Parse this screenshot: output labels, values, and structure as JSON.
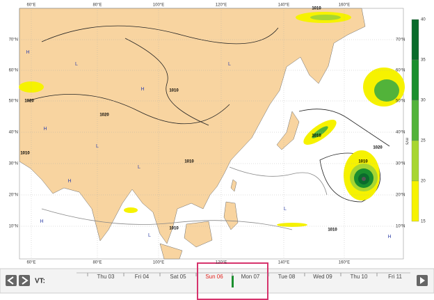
{
  "map": {
    "lon_labels": [
      "60°E",
      "80°E",
      "100°E",
      "120°E",
      "140°E",
      "160°E"
    ],
    "lat_labels": [
      "70°N",
      "60°N",
      "50°N",
      "40°N",
      "30°N",
      "20°N",
      "10°N"
    ],
    "isobar_labels": [
      "1010",
      "1020",
      "1020",
      "1010",
      "1010",
      "1010",
      "1010",
      "1020",
      "1010",
      "1010",
      "1010"
    ],
    "centers": [
      "H",
      "L",
      "H",
      "L",
      "H",
      "L",
      "L",
      "H",
      "L",
      "H",
      "L",
      "H"
    ]
  },
  "colorbar": {
    "ticks": [
      40,
      35,
      30,
      25,
      20,
      15
    ],
    "colors": [
      "#0a6b2c",
      "#1a8f2e",
      "#52b33a",
      "#a8d631",
      "#f6f200"
    ],
    "unit": "m/s"
  },
  "timeline": {
    "label": "VT:",
    "days": [
      "Thu 03",
      "Fri 04",
      "Sat 05",
      "Sun 06",
      "Mon 07",
      "Tue 08",
      "Wed 09",
      "Thu 10",
      "Fri 11"
    ],
    "selected": 3
  }
}
